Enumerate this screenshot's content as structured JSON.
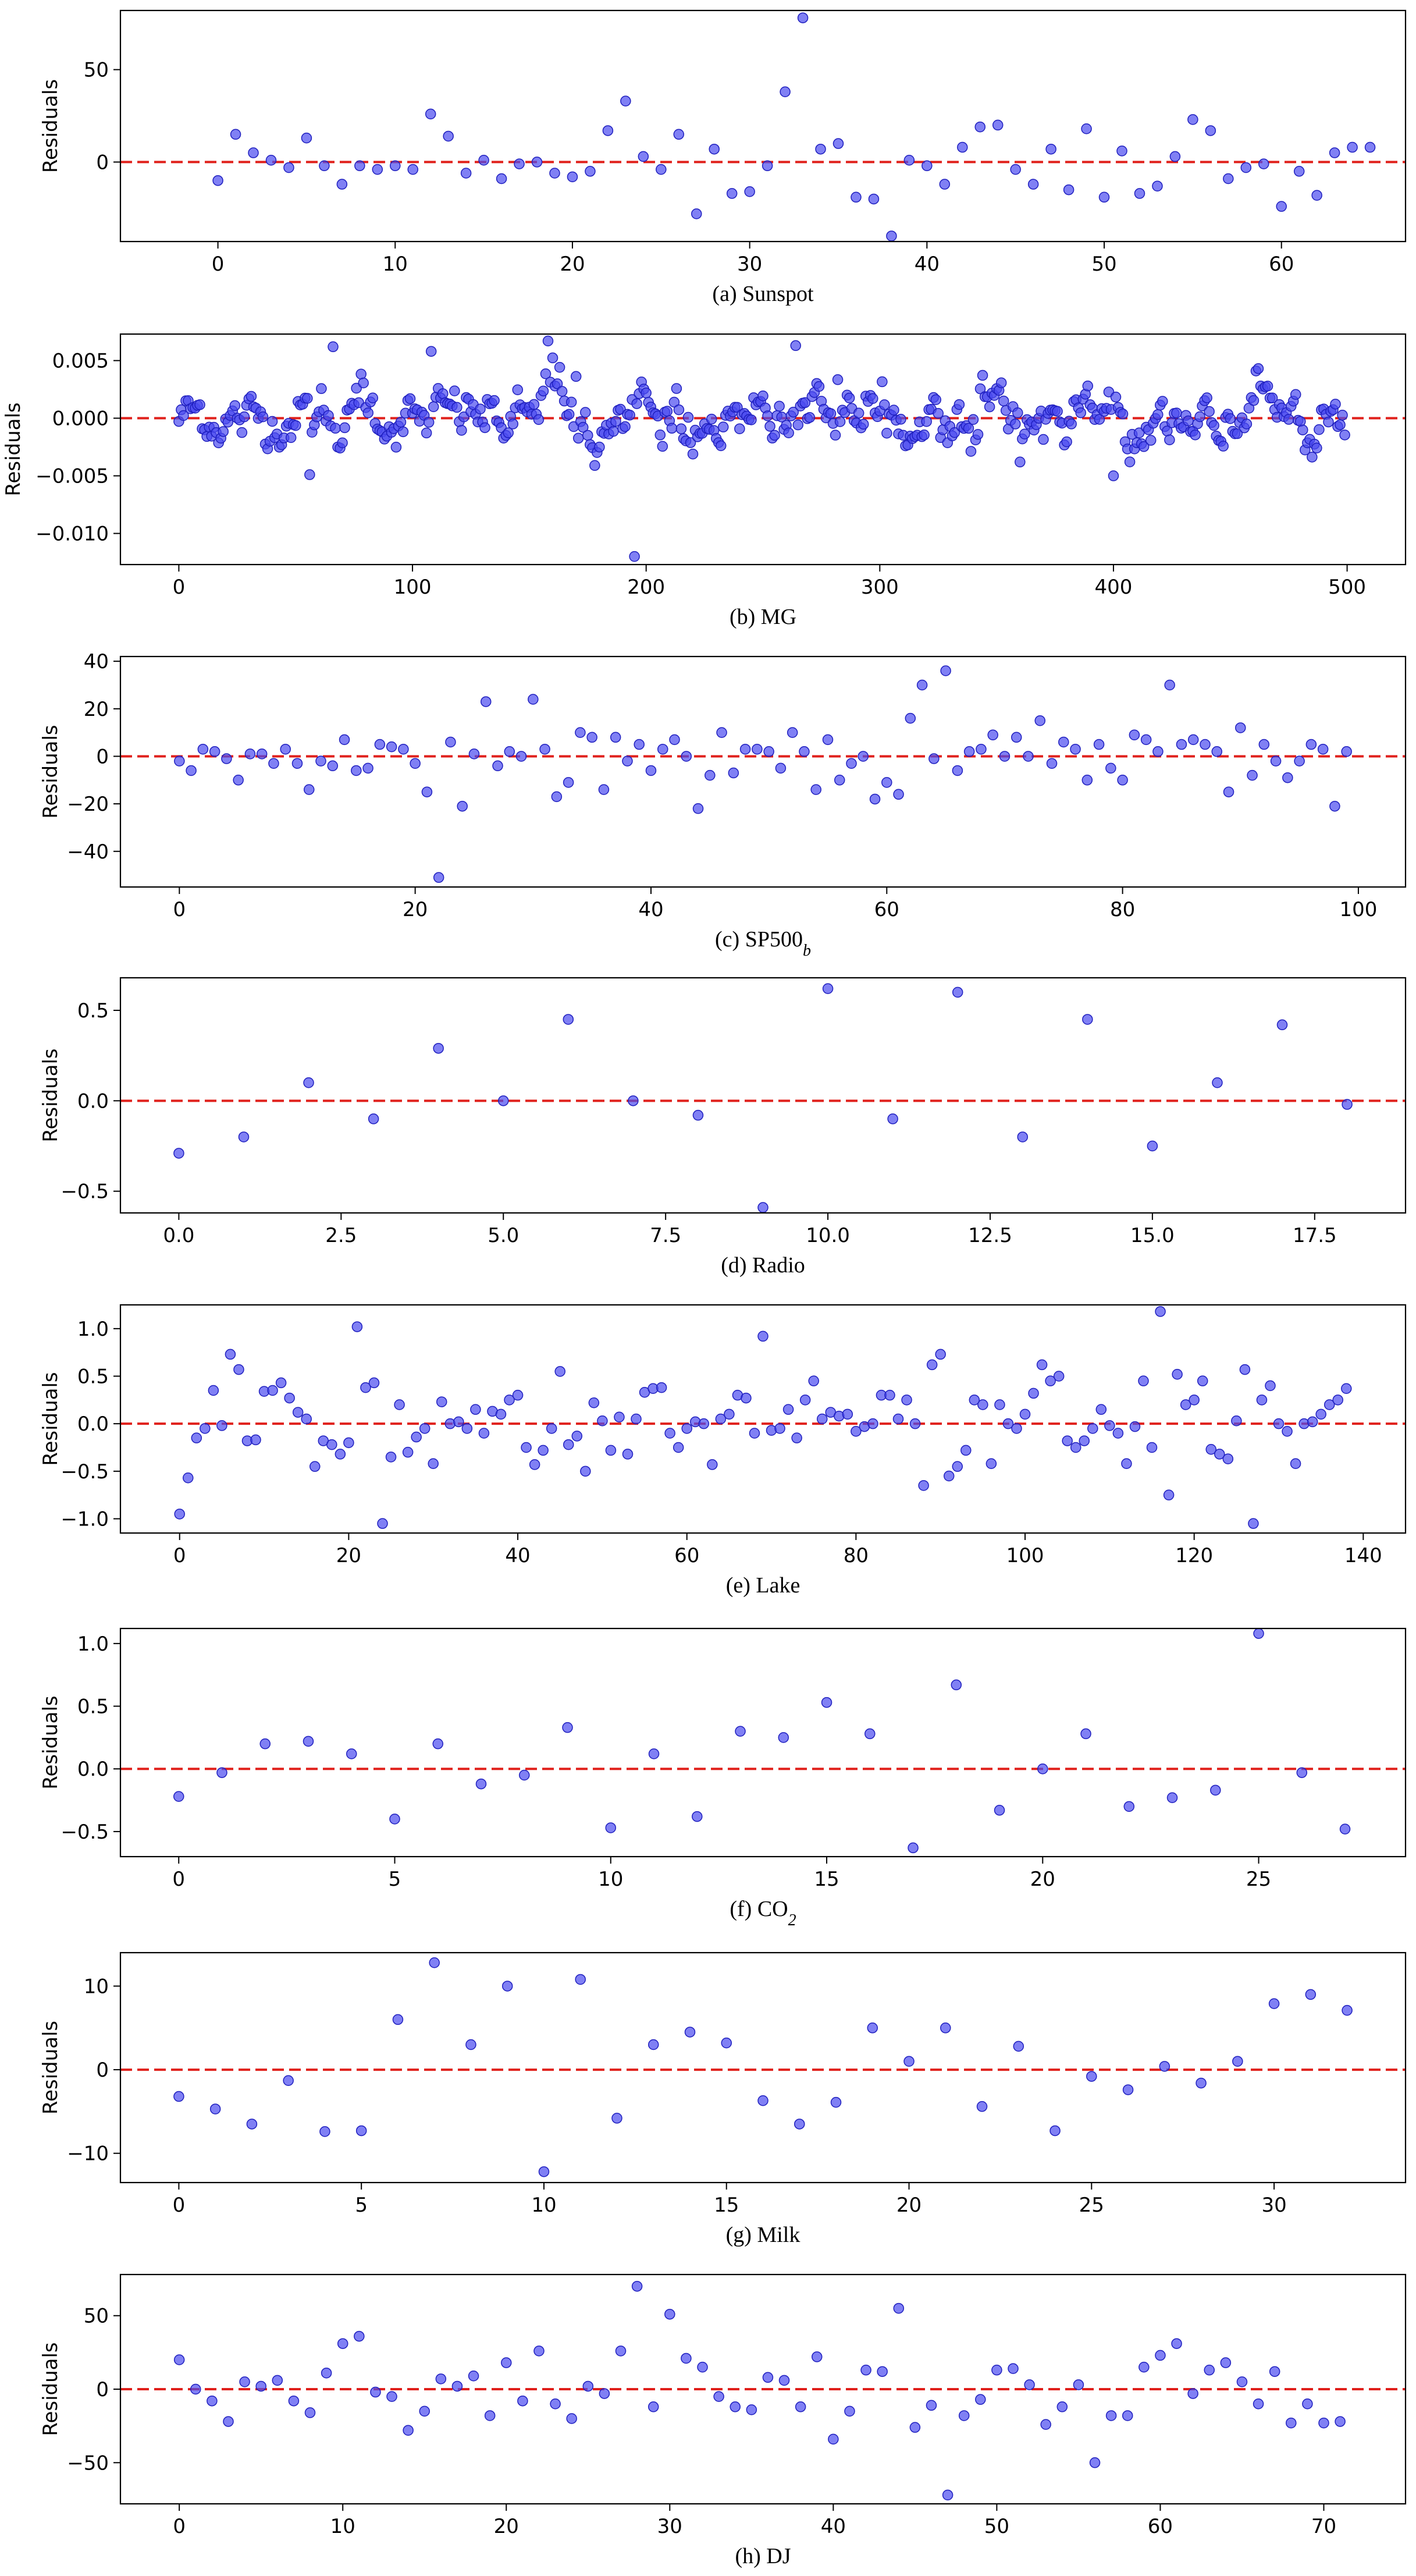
{
  "style": {
    "point_color": "#4a4af0",
    "point_edge_color": "#1f1fbf",
    "zero_line_color": "#e0201b",
    "axis_color": "#000000"
  },
  "chart_data": [
    {
      "type": "scatter",
      "caption": "(a) Sunspot",
      "ylabel": "Residuals",
      "xlim": [
        -5.5,
        67
      ],
      "ylim": [
        -43,
        82
      ],
      "xticks": [
        0,
        10,
        20,
        30,
        40,
        50,
        60
      ],
      "xtick_labels": [
        "0",
        "10",
        "20",
        "30",
        "40",
        "50",
        "60"
      ],
      "yticks": [
        0,
        50
      ],
      "ytick_labels": [
        "0",
        "50"
      ],
      "zero_line": 0,
      "y": [
        -10,
        15,
        5,
        1,
        -3,
        13,
        -2,
        -12,
        -2,
        -4,
        -2,
        -4,
        26,
        14,
        -6,
        1,
        -9,
        -1,
        0,
        -6,
        -8,
        -5,
        17,
        33,
        3,
        -4,
        15,
        -28,
        7,
        -17,
        -16,
        -2,
        38,
        78,
        7,
        10,
        -19,
        -20,
        -40,
        1,
        -2,
        -12,
        8,
        19,
        20,
        -4,
        -12,
        7,
        -15,
        18,
        -19,
        6,
        -17,
        -13,
        3,
        23,
        17,
        -9,
        -3,
        -1,
        -24,
        -5,
        -18,
        5,
        8,
        8
      ]
    },
    {
      "type": "scatter",
      "caption": "(b) MG",
      "ylabel": "Residuals",
      "xlim": [
        -25,
        525
      ],
      "ylim": [
        -0.0127,
        0.0073
      ],
      "xticks": [
        0,
        100,
        200,
        300,
        400,
        500
      ],
      "xtick_labels": [
        "0",
        "100",
        "200",
        "300",
        "400",
        "500"
      ],
      "yticks": [
        -0.01,
        -0.005,
        0.0,
        0.005
      ],
      "ytick_labels": [
        "−0.010",
        "−0.005",
        "0.000",
        "0.005"
      ],
      "zero_line": 0,
      "y_description": "approximately 500 residual points, dense band within ±0.004 with spikes to 0.0067 and -0.012"
    },
    {
      "type": "scatter",
      "caption": "(c) SP500",
      "caption_subscript": "b",
      "ylabel": "Residuals",
      "xlim": [
        -5,
        104
      ],
      "ylim": [
        -55,
        42
      ],
      "xticks": [
        0,
        20,
        40,
        60,
        80,
        100
      ],
      "xtick_labels": [
        "0",
        "20",
        "40",
        "60",
        "80",
        "100"
      ],
      "yticks": [
        -40,
        -20,
        0,
        20,
        40
      ],
      "ytick_labels": [
        "−40",
        "−20",
        "0",
        "20",
        "40"
      ],
      "zero_line": 0,
      "y": [
        -2,
        -6,
        3,
        2,
        -1,
        -10,
        1,
        1,
        -3,
        3,
        -3,
        -14,
        -2,
        -4,
        7,
        -6,
        -5,
        5,
        4,
        3,
        -3,
        -15,
        -51,
        6,
        -21,
        1,
        23,
        -4,
        2,
        0,
        24,
        3,
        -17,
        -11,
        10,
        8,
        -14,
        8,
        -2,
        5,
        -6,
        3,
        7,
        0,
        -22,
        -8,
        10,
        -7,
        3,
        3,
        2,
        -5,
        10,
        2,
        -14,
        7,
        -10,
        -3,
        0,
        -18,
        -11,
        -16,
        16,
        30,
        -1,
        36,
        -6,
        2,
        3,
        9,
        0,
        8,
        0,
        15,
        -3,
        6,
        3,
        -10,
        5,
        -5,
        -10,
        9,
        7,
        2,
        30,
        5,
        7,
        5,
        2,
        -15,
        12,
        -8,
        5,
        -2,
        -9,
        -2,
        5,
        3,
        -21,
        2
      ]
    },
    {
      "type": "scatter",
      "caption": "(d) Radio",
      "ylabel": "Residuals",
      "xlim": [
        -0.9,
        18.9
      ],
      "ylim": [
        -0.62,
        0.68
      ],
      "xticks": [
        0.0,
        2.5,
        5.0,
        7.5,
        10.0,
        12.5,
        15.0,
        17.5
      ],
      "xtick_labels": [
        "0.0",
        "2.5",
        "5.0",
        "7.5",
        "10.0",
        "12.5",
        "15.0",
        "17.5"
      ],
      "yticks": [
        -0.5,
        0.0,
        0.5
      ],
      "ytick_labels": [
        "−0.5",
        "0.0",
        "0.5"
      ],
      "zero_line": 0,
      "y": [
        -0.29,
        -0.2,
        0.1,
        -0.1,
        0.29,
        0.0,
        0.45,
        0.0,
        -0.08,
        -0.59,
        0.62,
        -0.1,
        0.6,
        -0.2,
        0.45,
        -0.25,
        0.1,
        0.42,
        -0.02
      ]
    },
    {
      "type": "scatter",
      "caption": "(e) Lake",
      "ylabel": "Residuals",
      "xlim": [
        -7,
        145
      ],
      "ylim": [
        -1.15,
        1.25
      ],
      "xticks": [
        0,
        20,
        40,
        60,
        80,
        100,
        120,
        140
      ],
      "xtick_labels": [
        "0",
        "20",
        "40",
        "60",
        "80",
        "100",
        "120",
        "140"
      ],
      "yticks": [
        -1.0,
        -0.5,
        0.0,
        0.5,
        1.0
      ],
      "ytick_labels": [
        "−1.0",
        "−0.5",
        "0.0",
        "0.5",
        "1.0"
      ],
      "zero_line": 0,
      "y": [
        -0.95,
        -0.57,
        -0.15,
        -0.05,
        0.35,
        -0.02,
        0.73,
        0.57,
        -0.18,
        -0.17,
        0.34,
        0.35,
        0.43,
        0.27,
        0.12,
        0.05,
        -0.45,
        -0.18,
        -0.22,
        -0.32,
        -0.2,
        1.02,
        0.38,
        0.43,
        -1.05,
        -0.35,
        0.2,
        -0.3,
        -0.14,
        -0.05,
        -0.42,
        0.23,
        0.0,
        0.02,
        -0.05,
        0.15,
        -0.1,
        0.13,
        0.1,
        0.25,
        0.3,
        -0.25,
        -0.43,
        -0.28,
        -0.05,
        0.55,
        -0.22,
        -0.13,
        -0.5,
        0.22,
        0.03,
        -0.28,
        0.07,
        -0.32,
        0.05,
        0.33,
        0.37,
        0.38,
        -0.1,
        -0.25,
        -0.05,
        0.02,
        0.0,
        -0.43,
        0.05,
        0.1,
        0.3,
        0.27,
        -0.1,
        0.92,
        -0.07,
        -0.05,
        0.15,
        -0.15,
        0.25,
        0.45,
        0.05,
        0.12,
        0.08,
        0.1,
        -0.08,
        -0.03,
        0.0,
        0.3,
        0.3,
        0.05,
        0.25,
        0.0,
        -0.65,
        0.62,
        0.73,
        -0.55,
        -0.45,
        -0.28,
        0.25,
        0.2,
        -0.42,
        0.2,
        0.0,
        -0.05,
        0.1,
        0.32,
        0.62,
        0.45,
        0.5,
        -0.18,
        -0.25,
        -0.18,
        -0.05,
        0.15,
        -0.02,
        -0.1,
        -0.42,
        -0.03,
        0.45,
        -0.25,
        1.18,
        -0.75,
        0.52,
        0.2,
        0.25,
        0.45,
        -0.27,
        -0.32,
        -0.37,
        0.03,
        0.57,
        -1.05,
        0.25,
        0.4,
        0.0,
        -0.08,
        -0.42,
        0.0,
        0.02,
        0.1,
        0.2,
        0.25,
        0.37
      ]
    },
    {
      "type": "scatter",
      "caption": "(f) CO",
      "caption_subscript": "2",
      "ylabel": "Residuals",
      "xlim": [
        -1.35,
        28.4
      ],
      "ylim": [
        -0.7,
        1.12
      ],
      "xticks": [
        0,
        5,
        10,
        15,
        20,
        25
      ],
      "xtick_labels": [
        "0",
        "5",
        "10",
        "15",
        "20",
        "25"
      ],
      "yticks": [
        -0.5,
        0.0,
        0.5,
        1.0
      ],
      "ytick_labels": [
        "−0.5",
        "0.0",
        "0.5",
        "1.0"
      ],
      "zero_line": 0,
      "y": [
        -0.22,
        -0.03,
        0.2,
        0.22,
        0.12,
        -0.4,
        0.2,
        -0.12,
        -0.05,
        0.33,
        -0.47,
        0.12,
        -0.38,
        0.3,
        0.25,
        0.53,
        0.28,
        -0.63,
        0.67,
        -0.33,
        0.0,
        0.28,
        -0.3,
        -0.23,
        -0.17,
        1.08,
        -0.03,
        -0.48
      ]
    },
    {
      "type": "scatter",
      "caption": "(g) Milk",
      "ylabel": "Residuals",
      "xlim": [
        -1.6,
        33.6
      ],
      "ylim": [
        -13.5,
        14
      ],
      "xticks": [
        0,
        5,
        10,
        15,
        20,
        25,
        30
      ],
      "xtick_labels": [
        "0",
        "5",
        "10",
        "15",
        "20",
        "25",
        "30"
      ],
      "yticks": [
        -10,
        0,
        10
      ],
      "ytick_labels": [
        "−10",
        "0",
        "10"
      ],
      "zero_line": 0,
      "y": [
        -3.2,
        -4.7,
        -6.5,
        -1.3,
        -7.4,
        -7.3,
        6.0,
        12.8,
        3.0,
        10.0,
        -12.2,
        10.8,
        -5.8,
        3.0,
        4.5,
        3.2,
        -3.7,
        -6.5,
        -3.9,
        5.0,
        1.0,
        5.0,
        -4.4,
        2.8,
        -7.3,
        -0.8,
        -2.4,
        0.4,
        -1.6,
        1.0,
        7.9,
        9.0,
        7.1
      ]
    },
    {
      "type": "scatter",
      "caption": "(h) DJ",
      "ylabel": "Residuals",
      "xlim": [
        -3.6,
        75
      ],
      "ylim": [
        -78,
        78
      ],
      "xticks": [
        0,
        10,
        20,
        30,
        40,
        50,
        60,
        70
      ],
      "xtick_labels": [
        "0",
        "10",
        "20",
        "30",
        "40",
        "50",
        "60",
        "70"
      ],
      "yticks": [
        -50,
        0,
        50
      ],
      "ytick_labels": [
        "−50",
        "0",
        "50"
      ],
      "zero_line": 0,
      "y": [
        20,
        0,
        -8,
        -22,
        5,
        2,
        6,
        -8,
        -16,
        11,
        31,
        36,
        -2,
        -5,
        -28,
        -15,
        7,
        2,
        9,
        -18,
        18,
        -8,
        26,
        -10,
        -20,
        2,
        -3,
        26,
        70,
        -12,
        51,
        21,
        15,
        -5,
        -12,
        -14,
        8,
        6,
        -12,
        22,
        -34,
        -15,
        13,
        12,
        55,
        -26,
        -11,
        -72,
        -18,
        -7,
        13,
        14,
        3,
        -24,
        -12,
        3,
        -50,
        -18,
        -18,
        15,
        23,
        31,
        -3,
        13,
        18,
        5,
        -10,
        12,
        -23,
        -10,
        -23,
        -22
      ]
    }
  ]
}
